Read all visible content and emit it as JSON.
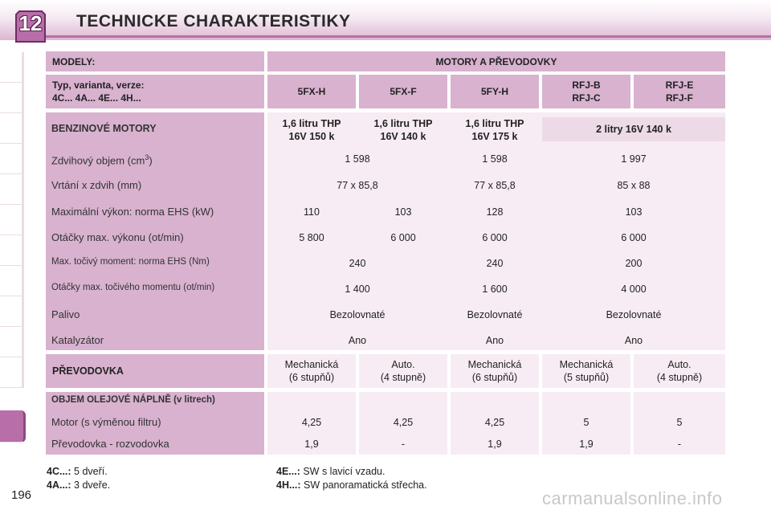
{
  "header": {
    "chapter": "12",
    "title": "TECHNICKE CHARAKTERISTIKY"
  },
  "table": {
    "models_label": "MODELY:",
    "engines_label": "MOTORY A PŘEVODOVKY",
    "type_label_1": "Typ, varianta, verze:",
    "type_label_2": "4C... 4A... 4E... 4H...",
    "types": [
      {
        "l1": "5FX-H",
        "l2": ""
      },
      {
        "l1": "5FX-F",
        "l2": ""
      },
      {
        "l1": "5FY-H",
        "l2": ""
      },
      {
        "l1": "RFJ-B",
        "l2": "RFJ-C"
      },
      {
        "l1": "RFJ-E",
        "l2": "RFJ-F"
      }
    ],
    "petrol_label": "BENZINOVÉ MOTORY",
    "petrol_engines": [
      {
        "l1": "1,6 litru THP",
        "l2": "16V 150 k"
      },
      {
        "l1": "1,6 litru THP",
        "l2": "16V 140 k"
      },
      {
        "l1": "1,6 litru THP",
        "l2": "16V 175 k"
      },
      {
        "l1": "2 litry 16V 140 k",
        "l2": ""
      }
    ],
    "rows": [
      {
        "label": "Zdvihový objem (cm",
        "sup": "3",
        "label_end": ")",
        "g1": "1 598",
        "g2": "1 598",
        "g3": "1 997"
      },
      {
        "label": "Vrtání x zdvih (mm)",
        "g1": "77 x 85,8",
        "g2": "77 x 85,8",
        "g3": "85 x 88"
      },
      {
        "label": "Maximální výkon: norma EHS (kW)",
        "c1": "110",
        "c2": "103",
        "g2": "128",
        "g3": "103"
      },
      {
        "label": "Otáčky max. výkonu (ot/min)",
        "c1": "5 800",
        "c2": "6 000",
        "g2": "6 000",
        "g3": "6 000"
      },
      {
        "label": "Max. točivý moment: norma EHS (Nm)",
        "g1": "240",
        "g2": "240",
        "g3": "200"
      },
      {
        "label": "Otáčky max. točivého momentu (ot/min)",
        "g1": "1 400",
        "g2": "1 600",
        "g3": "4 000"
      },
      {
        "label": "Palivo",
        "g1": "Bezolovnaté",
        "g2": "Bezolovnaté",
        "g3": "Bezolovnaté"
      },
      {
        "label": "Katalyzátor",
        "g1": "Ano",
        "g2": "Ano",
        "g3": "Ano"
      }
    ],
    "gearbox_label": "PŘEVODOVKA",
    "gearboxes": [
      {
        "l1": "Mechanická",
        "l2": "(6 stupňů)"
      },
      {
        "l1": "Auto.",
        "l2": "(4 stupně)"
      },
      {
        "l1": "Mechanická",
        "l2": "(6 stupňů)"
      },
      {
        "l1": "Mechanická",
        "l2": "(5 stupňů)"
      },
      {
        "l1": "Auto.",
        "l2": "(4 stupně)"
      }
    ],
    "oil_label": "OBJEM OLEJOVÉ NÁPLNĚ  (v litrech)",
    "oil_rows": [
      {
        "label": "Motor (s výměnou filtru)",
        "values": [
          "4,25",
          "4,25",
          "4,25",
          "5",
          "5"
        ]
      },
      {
        "label": "Převodovka - rozvodovka",
        "values": [
          "1,9",
          "-",
          "1,9",
          "1,9",
          "-"
        ]
      }
    ]
  },
  "footnotes": {
    "n1_key": "4C...:",
    "n1_text": " 5 dveří.",
    "n2_key": "4A...:",
    "n2_text": " 3 dveře.",
    "n3_key": "4E...:",
    "n3_text": " SW s lavicí vzadu.",
    "n4_key": "4H...:",
    "n4_text": " SW panoramatická střecha."
  },
  "page_number": "196",
  "watermark": "carmanualsonline.info",
  "colors": {
    "accent": "#b86ea8",
    "header_cell": "#d8b2cf",
    "light_cell": "#f7ecf3"
  }
}
